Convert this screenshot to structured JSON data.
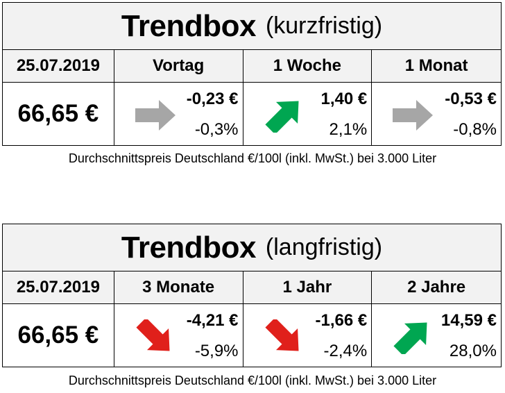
{
  "short_term": {
    "title_main": "Trendbox",
    "title_sub": "(kurzfristig)",
    "date": "25.07.2019",
    "price": "66,65 €",
    "columns": [
      {
        "label": "Vortag",
        "delta": "-0,23 €",
        "pct": "-0,3%",
        "trend": "flat"
      },
      {
        "label": "1 Woche",
        "delta": "1,40 €",
        "pct": "2,1%",
        "trend": "up"
      },
      {
        "label": "1 Monat",
        "delta": "-0,53 €",
        "pct": "-0,8%",
        "trend": "flat"
      }
    ],
    "footnote": "Durchschnittspreis Deutschland €/100l (inkl. MwSt.) bei 3.000 Liter"
  },
  "long_term": {
    "title_main": "Trendbox",
    "title_sub": "(langfristig)",
    "date": "25.07.2019",
    "price": "66,65 €",
    "columns": [
      {
        "label": "3 Monate",
        "delta": "-4,21 €",
        "pct": "-5,9%",
        "trend": "down"
      },
      {
        "label": "1 Jahr",
        "delta": "-1,66 €",
        "pct": "-2,4%",
        "trend": "down"
      },
      {
        "label": "2 Jahre",
        "delta": "14,59 €",
        "pct": "28,0%",
        "trend": "up"
      }
    ],
    "footnote": "Durchschnittspreis Deutschland €/100l (inkl. MwSt.) bei 3.000 Liter"
  },
  "colors": {
    "up": "#00a651",
    "down": "#e0201b",
    "flat": "#a6a6a6",
    "header_bg": "#f2f2f2"
  },
  "icons": {
    "up": "arrow-up-right-icon",
    "down": "arrow-down-right-icon",
    "flat": "arrow-right-icon"
  }
}
